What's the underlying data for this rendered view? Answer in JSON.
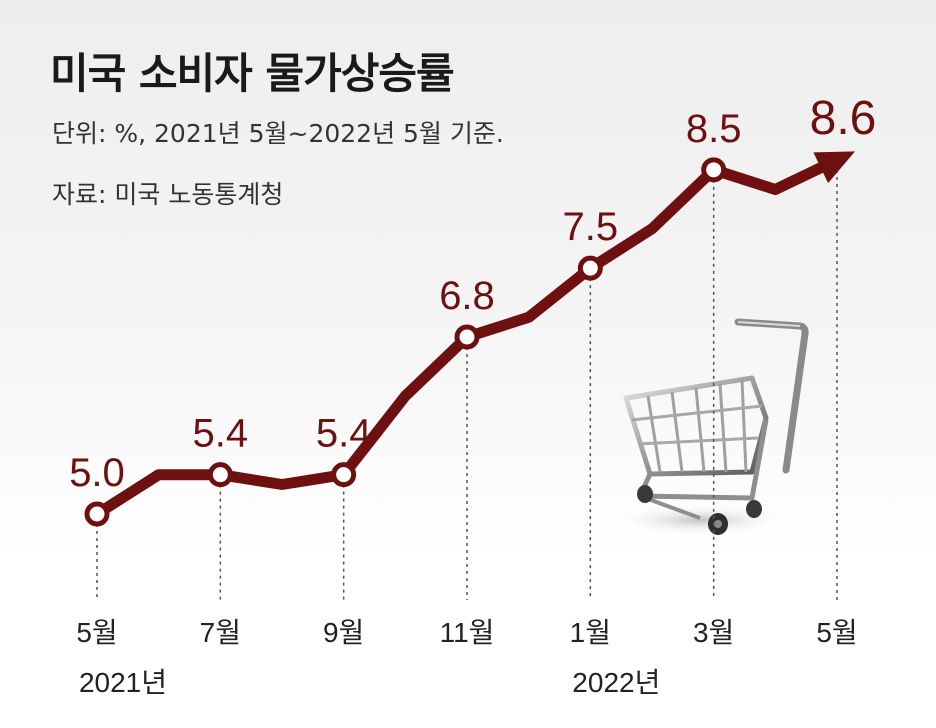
{
  "header": {
    "title": "미국 소비자 물가상승률",
    "subtitle": "단위: %, 2021년 5월~2022년 5월 기준.",
    "source": "자료: 미국 노동통계청"
  },
  "colors": {
    "line": "#6e1010",
    "label": "#6e1010",
    "axis_text": "#222222"
  },
  "icon": "shopping-cart-icon",
  "chart_data": {
    "type": "line",
    "title": "미국 소비자 물가상승률",
    "unit": "%",
    "x": [
      "2021-05",
      "2021-06",
      "2021-07",
      "2021-08",
      "2021-09",
      "2021-10",
      "2021-11",
      "2021-12",
      "2022-01",
      "2022-02",
      "2022-03",
      "2022-04",
      "2022-05"
    ],
    "series": [
      {
        "values": [
          5.0,
          5.4,
          5.4,
          5.3,
          5.4,
          6.2,
          6.8,
          7.0,
          7.5,
          7.9,
          8.5,
          8.3,
          8.6
        ]
      }
    ],
    "labeled_points": [
      {
        "index": 0,
        "label": "5.0"
      },
      {
        "index": 2,
        "label": "5.4"
      },
      {
        "index": 4,
        "label": "5.4"
      },
      {
        "index": 6,
        "label": "6.8"
      },
      {
        "index": 8,
        "label": "7.5"
      },
      {
        "index": 10,
        "label": "8.5"
      },
      {
        "index": 12,
        "label": "8.6"
      }
    ],
    "tick_labels": [
      {
        "index": 0,
        "month": "5월",
        "year": "2021년"
      },
      {
        "index": 2,
        "month": "7월",
        "year": ""
      },
      {
        "index": 4,
        "month": "9월",
        "year": ""
      },
      {
        "index": 6,
        "month": "11월",
        "year": ""
      },
      {
        "index": 8,
        "month": "1월",
        "year": "2022년"
      },
      {
        "index": 10,
        "month": "3월",
        "year": ""
      },
      {
        "index": 12,
        "month": "5월",
        "year": ""
      }
    ],
    "ylim": [
      4.5,
      9.0
    ],
    "grid": false,
    "legend": "none"
  }
}
